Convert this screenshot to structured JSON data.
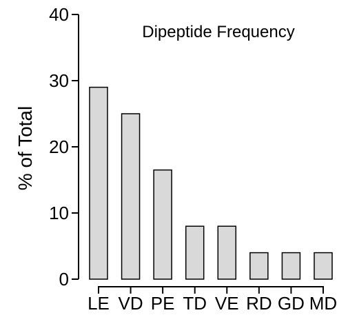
{
  "chart_data": {
    "type": "bar",
    "title": "Dipeptide Frequency",
    "xlabel": "",
    "ylabel": "% of Total",
    "ylim": [
      0,
      40
    ],
    "yticks": [
      0,
      10,
      20,
      30,
      40
    ],
    "categories": [
      "LE",
      "VD",
      "PE",
      "TD",
      "VE",
      "RD",
      "GD",
      "MD"
    ],
    "values": [
      29,
      25,
      16.5,
      8,
      8,
      4,
      4,
      4
    ],
    "grid": false,
    "bar_fill": "#d9d9d9",
    "bar_stroke": "#000000"
  }
}
